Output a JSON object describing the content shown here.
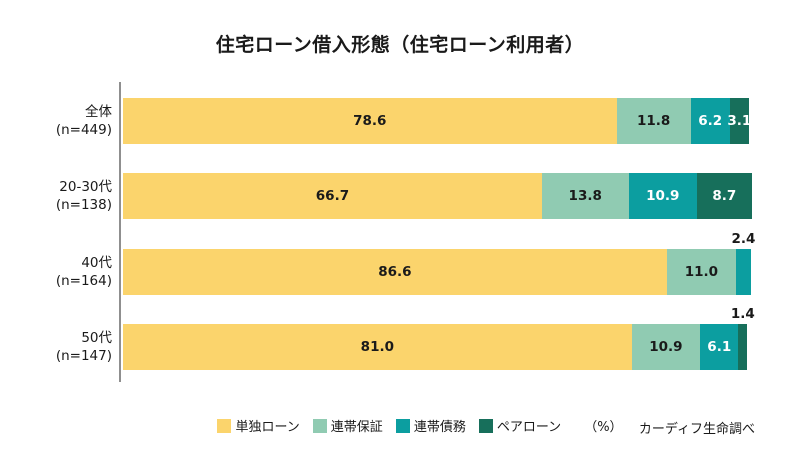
{
  "title": "住宅ローン借入形態（住宅ローン利用者）",
  "source_note": "カーディフ生命調べ",
  "chart_data": {
    "type": "bar",
    "subtype": "horizontal-stacked-percentage",
    "title": "住宅ローン借入形態（住宅ローン利用者）",
    "unit": "（%）",
    "xlim": [
      0,
      100
    ],
    "grid": false,
    "legend_position": "bottom",
    "categories": [
      "全体",
      "20-30代",
      "40代",
      "50代"
    ],
    "category_sublabels": [
      "(n=449)",
      "(n=138)",
      "(n=164)",
      "(n=147)"
    ],
    "series": [
      {
        "name": "単独ローン",
        "color": "#FBD46C",
        "label_color": "#1a1a1a",
        "values": [
          78.6,
          66.7,
          86.6,
          81.0
        ]
      },
      {
        "name": "連帯保証",
        "color": "#90CBB2",
        "label_color": "#1a1a1a",
        "values": [
          11.8,
          13.8,
          11.0,
          10.9
        ]
      },
      {
        "name": "連帯債務",
        "color": "#0C9EA0",
        "label_color": "#ffffff",
        "values": [
          6.2,
          10.9,
          2.4,
          6.1
        ]
      },
      {
        "name": "ペアローン",
        "color": "#176F5B",
        "label_color": "#ffffff",
        "values": [
          3.1,
          8.7,
          0,
          1.4
        ]
      }
    ],
    "value_label_rule": "values below 3 are drawn above the bar in black",
    "axis_color": "#8f8f8f",
    "text_color": "#1a1a1a"
  }
}
